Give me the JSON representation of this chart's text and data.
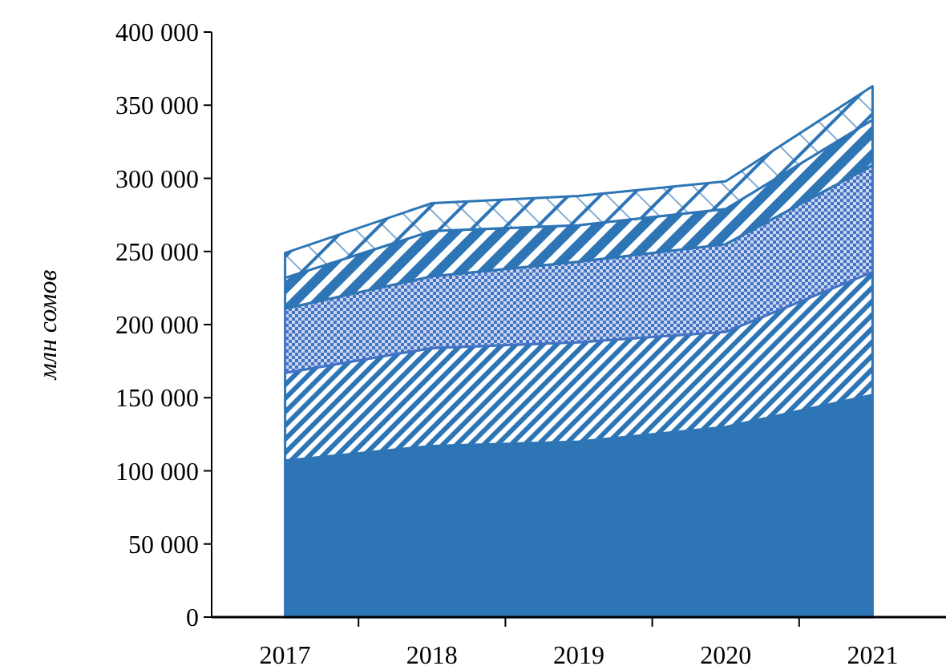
{
  "chart_data": {
    "type": "area",
    "stacked": true,
    "ylabel": "млн сомов",
    "categories": [
      "2017",
      "2018",
      "2019",
      "2020",
      "2021"
    ],
    "series": [
      {
        "color": "#2e75b6",
        "values": [
          107000,
          117000,
          120000,
          130000,
          152000
        ]
      },
      {
        "color": "#2e75b6",
        "values": [
          60000,
          67000,
          68000,
          65000,
          84000
        ]
      },
      {
        "color": "#4472c4",
        "values": [
          44000,
          49000,
          55000,
          60000,
          73000
        ]
      },
      {
        "color": "#2e75b6",
        "values": [
          21000,
          31000,
          25000,
          24000,
          31000
        ]
      },
      {
        "color": "#2e75b6",
        "values": [
          17000,
          19000,
          20000,
          19000,
          23000
        ]
      }
    ],
    "ylim": [
      0,
      400000
    ],
    "yticks": [
      0,
      {
        "value": 50000,
        "label": "50 000"
      },
      {
        "value": 100000,
        "label": "100 000"
      },
      {
        "value": 150000,
        "label": "150 000"
      },
      {
        "value": 200000,
        "label": "200 000"
      },
      {
        "value": 250000,
        "label": "250 000"
      },
      {
        "value": 300000,
        "label": "300 000"
      },
      {
        "value": 350000,
        "label": "350 000"
      },
      {
        "value": 400000,
        "label": "400 000"
      }
    ],
    "grid": false
  }
}
